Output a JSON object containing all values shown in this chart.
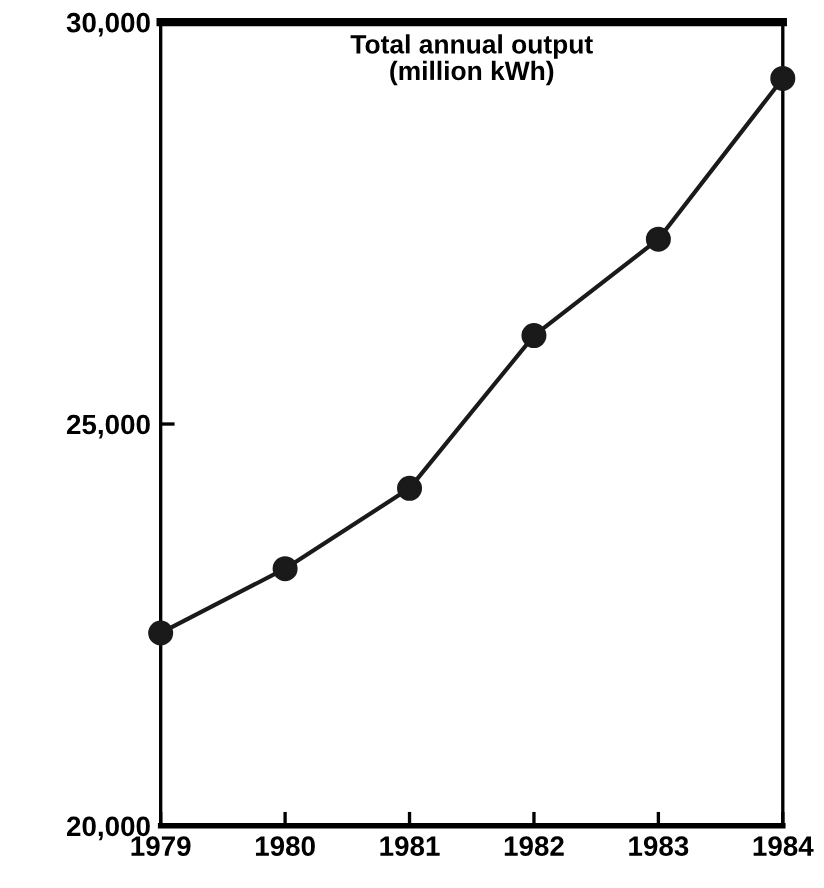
{
  "chart_data": {
    "type": "line",
    "title": "Total annual output\n(million kWh)",
    "x": [
      1979,
      1980,
      1981,
      1982,
      1983,
      1984
    ],
    "series": [
      {
        "color": "#1a1a1a",
        "values": [
          22400,
          23200,
          24200,
          26100,
          27300,
          29300
        ]
      }
    ],
    "xlim": [
      1979,
      1984
    ],
    "xticks": [
      1979,
      1980,
      1981,
      1982,
      1983,
      1984
    ],
    "ylim": [
      20000,
      30000
    ],
    "yticks": [
      {
        "value": 20000,
        "label": "20,000"
      },
      {
        "value": 25000,
        "label": "25,000"
      },
      {
        "value": 30000,
        "label": "30,000"
      }
    ],
    "marker": "circle",
    "line_style": "solid",
    "grid": false,
    "legend": false
  }
}
